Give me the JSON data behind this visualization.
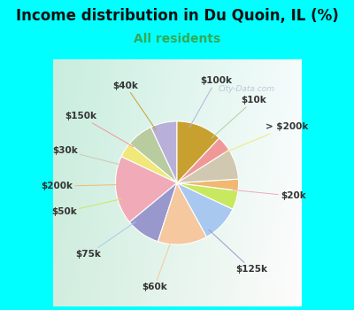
{
  "title": "Income distribution in Du Quoin, IL (%)",
  "subtitle": "All residents",
  "title_color": "#111111",
  "subtitle_color": "#33aa55",
  "background_color": "#00ffff",
  "chart_bg_top_left": "#b8e8d8",
  "chart_bg_bottom_right": "#e8f8f0",
  "watermark": "City-Data.com",
  "segments": [
    {
      "label": "$100k",
      "value": 7,
      "color": "#b8b0d8"
    },
    {
      "label": "$10k",
      "value": 7,
      "color": "#b8ccA0"
    },
    {
      "label": "> $200k",
      "value": 4,
      "color": "#f0e878"
    },
    {
      "label": "$20k",
      "value": 18,
      "color": "#f0aab8"
    },
    {
      "label": "$125k",
      "value": 9,
      "color": "#9898cc"
    },
    {
      "label": "$60k",
      "value": 13,
      "color": "#f5c8a0"
    },
    {
      "label": "$75k",
      "value": 10,
      "color": "#a8c8f0"
    },
    {
      "label": "$50k",
      "value": 5,
      "color": "#c8e860"
    },
    {
      "label": "$200k",
      "value": 3,
      "color": "#f0b870"
    },
    {
      "label": "$30k",
      "value": 8,
      "color": "#d0c8b0"
    },
    {
      "label": "$150k",
      "value": 4,
      "color": "#f09898"
    },
    {
      "label": "$40k",
      "value": 12,
      "color": "#c8a030"
    }
  ],
  "label_fontsize": 7.5,
  "title_fontsize": 12,
  "subtitle_fontsize": 10
}
